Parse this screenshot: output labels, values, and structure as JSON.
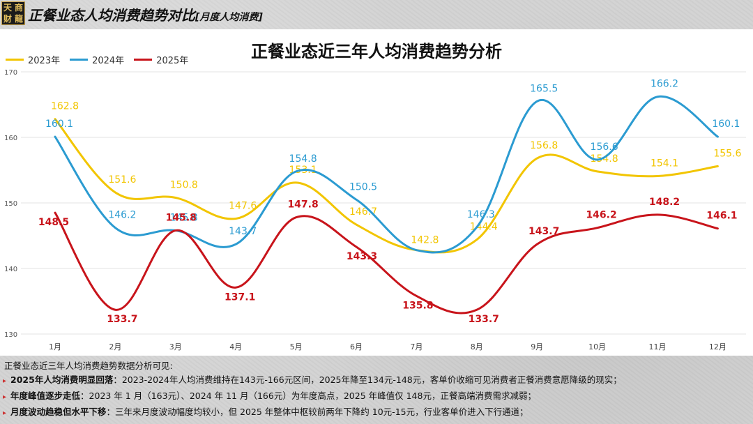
{
  "header": {
    "logo_chars": [
      "天",
      "商",
      "财",
      "龍"
    ],
    "title": "正餐业态人均消费趋势对比",
    "subtitle": "[月度人均消费]"
  },
  "chart_data": {
    "type": "line",
    "title": "正餐业态近三年人均消费趋势分析",
    "categories": [
      "1月",
      "2月",
      "3月",
      "4月",
      "5月",
      "6月",
      "7月",
      "8月",
      "9月",
      "10月",
      "11月",
      "12月"
    ],
    "ylim": [
      130,
      170
    ],
    "yticks": [
      "130",
      "140",
      "150",
      "160",
      "170"
    ],
    "grid": true,
    "legend_position": "top-left",
    "series": [
      {
        "name": "2023年",
        "color": "#f2c500",
        "values": [
          162.8,
          151.6,
          150.8,
          147.6,
          153.1,
          146.7,
          142.8,
          144.4,
          156.8,
          154.8,
          154.1,
          155.6
        ],
        "labels": [
          "162.8",
          "151.6",
          "150.8",
          "147.6",
          "153.1",
          "146.7",
          "142.8",
          "144.4",
          "156.8",
          "154.8",
          "154.1",
          "155.6"
        ]
      },
      {
        "name": "2024年",
        "color": "#2b9bd1",
        "values": [
          160.1,
          146.2,
          145.8,
          143.7,
          154.8,
          150.5,
          142.8,
          146.3,
          165.5,
          156.6,
          166.2,
          160.1
        ],
        "labels": [
          "160.1",
          "146.2",
          "145.8",
          "143.7",
          "154.8",
          "150.5",
          "",
          "146.3",
          "165.5",
          "156.6",
          "166.2",
          "160.1"
        ]
      },
      {
        "name": "2025年",
        "color": "#c8141b",
        "values": [
          148.5,
          133.7,
          145.8,
          137.1,
          147.8,
          143.3,
          135.8,
          133.7,
          143.7,
          146.2,
          148.2,
          146.1
        ],
        "labels": [
          "148.5",
          "133.7",
          "145.8",
          "137.1",
          "147.8",
          "143.3",
          "135.8",
          "133.7",
          "143.7",
          "146.2",
          "148.2",
          "146.1"
        ]
      }
    ]
  },
  "notes": {
    "intro": "正餐业态近三年人均消费趋势数据分析可见:",
    "items": [
      {
        "head": "2025年人均消费明显回落",
        "text": "：2023-2024年人均消费维持在143元-166元区间，2025年降至134元-148元，客单价收缩可见消费者正餐消费意愿降级的现实；"
      },
      {
        "head": "年度峰值逐步走低",
        "text": "：2023 年 1 月（163元）、2024 年 11 月（166元）为年度高点，2025 年峰值仅 148元，正餐高端消费需求减弱；"
      },
      {
        "head": "月度波动趋稳但水平下移",
        "text": "：三年来月度波动幅度均较小，但 2025 年整体中枢较前两年下降约 10元-15元，行业客单价进入下行通道；"
      }
    ]
  }
}
